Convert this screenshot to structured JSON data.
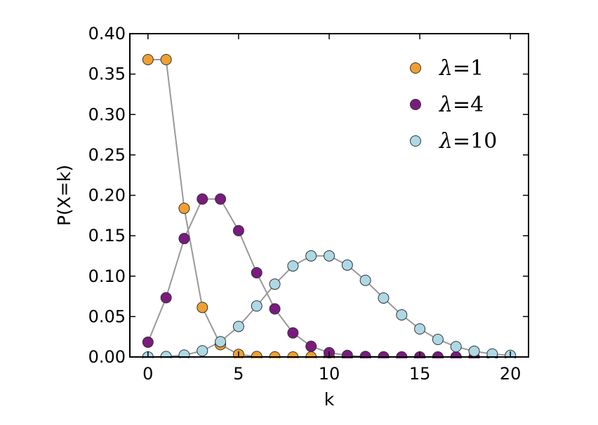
{
  "chart_data": {
    "type": "scatter",
    "xlabel": "k",
    "ylabel": "P(X=k)",
    "xlim": [
      -1,
      21
    ],
    "ylim": [
      0,
      0.4
    ],
    "xticks": [
      0,
      5,
      10,
      15,
      20
    ],
    "yticks": [
      0.0,
      0.05,
      0.1,
      0.15,
      0.2,
      0.25,
      0.3,
      0.35,
      0.4
    ],
    "ytick_labels": [
      "0.00",
      "0.05",
      "0.10",
      "0.15",
      "0.20",
      "0.25",
      "0.30",
      "0.35",
      "0.40"
    ],
    "xtick_labels": [
      "0",
      "5",
      "10",
      "15",
      "20"
    ],
    "grid": false,
    "legend_position": "top-right",
    "line_color": "#999999",
    "series": [
      {
        "name": "λ=1",
        "legend_symbol": "λ",
        "legend_value": "=1",
        "color": "#f0a030",
        "x": [
          0,
          1,
          2,
          3,
          4,
          5,
          6,
          7,
          8,
          9,
          10,
          11,
          12,
          13,
          14,
          15,
          16,
          17,
          18,
          19,
          20
        ],
        "values": [
          0.3679,
          0.3679,
          0.1839,
          0.0613,
          0.0153,
          0.0031,
          0.0005,
          0.0001,
          0.0,
          0.0,
          0.0,
          0.0,
          0.0,
          0.0,
          0.0,
          0.0,
          0.0,
          0.0,
          0.0,
          0.0,
          0.0
        ]
      },
      {
        "name": "λ=4",
        "legend_symbol": "λ",
        "legend_value": "=4",
        "color": "#7b1a7f",
        "x": [
          0,
          1,
          2,
          3,
          4,
          5,
          6,
          7,
          8,
          9,
          10,
          11,
          12,
          13,
          14,
          15,
          16,
          17,
          18,
          19,
          20
        ],
        "values": [
          0.0183,
          0.0733,
          0.1465,
          0.1954,
          0.1954,
          0.1563,
          0.1042,
          0.0595,
          0.0298,
          0.0132,
          0.0053,
          0.0019,
          0.0006,
          0.0002,
          0.0001,
          0.0,
          0.0,
          0.0,
          0.0,
          0.0,
          0.0
        ]
      },
      {
        "name": "λ=10",
        "legend_symbol": "λ",
        "legend_value": "=10",
        "color": "#add8e6",
        "x": [
          0,
          1,
          2,
          3,
          4,
          5,
          6,
          7,
          8,
          9,
          10,
          11,
          12,
          13,
          14,
          15,
          16,
          17,
          18,
          19,
          20
        ],
        "values": [
          5e-05,
          0.0005,
          0.0023,
          0.0076,
          0.0189,
          0.0378,
          0.0631,
          0.0901,
          0.1126,
          0.1251,
          0.1251,
          0.1137,
          0.0948,
          0.0729,
          0.0521,
          0.0347,
          0.0217,
          0.0128,
          0.0071,
          0.0037,
          0.0019
        ]
      }
    ]
  }
}
